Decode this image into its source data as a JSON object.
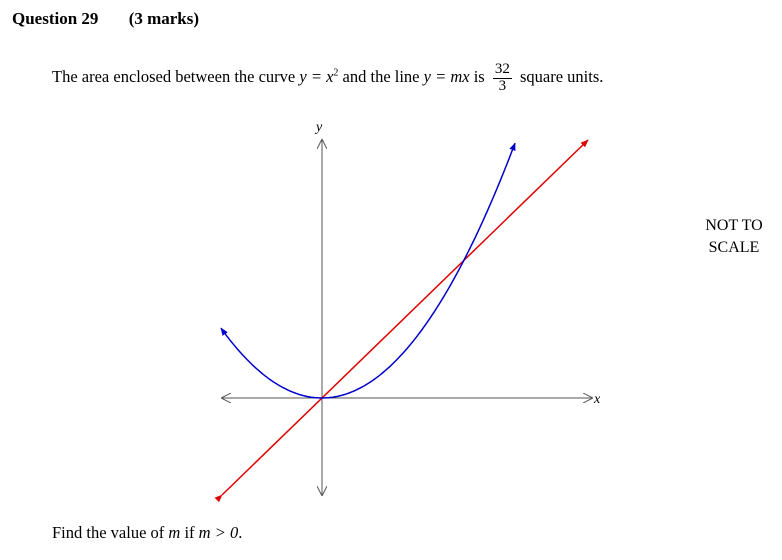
{
  "header": {
    "question": "Question 29",
    "marks": "(3 marks)"
  },
  "statement": {
    "text_before": "The area enclosed between the curve ",
    "curve_eq": "y = x",
    "curve_exp": "2",
    "text_mid": " and the line ",
    "line_eq": "y = mx",
    "text_is": " is ",
    "area_num": "32",
    "area_den": "3",
    "text_after": " square units."
  },
  "scale_note": {
    "line1": "NOT TO",
    "line2": "SCALE"
  },
  "graph": {
    "y_label": "y",
    "x_label": "x",
    "colors": {
      "curve": "#0000cc",
      "line": "#e00000",
      "axis": "#555555"
    }
  },
  "question": {
    "before": "Find the value of ",
    "var": "m",
    "mid": " if ",
    "cond": "m > 0",
    "after": "."
  }
}
